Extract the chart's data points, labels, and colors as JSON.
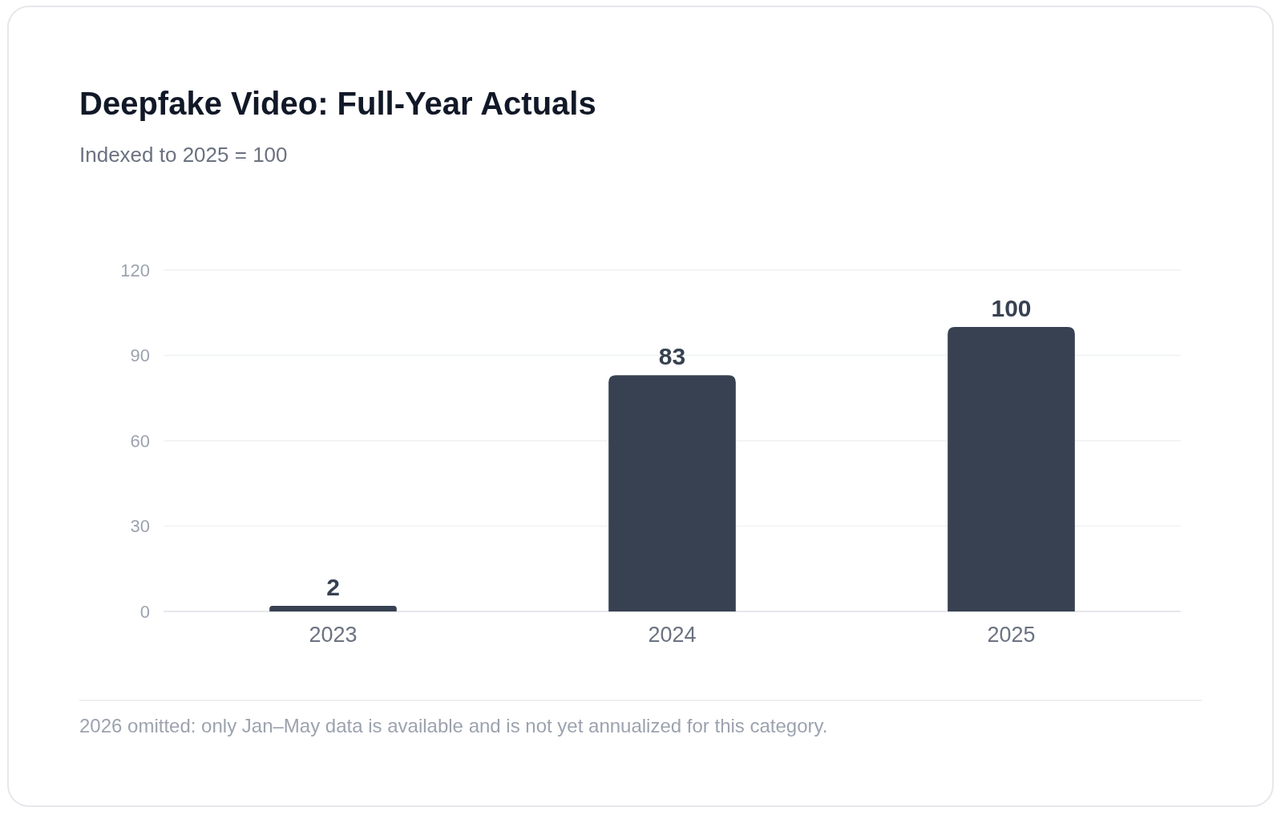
{
  "chart_data": {
    "type": "bar",
    "title": "Deepfake Video: Full-Year Actuals",
    "subtitle": "Indexed to 2025 = 100",
    "categories": [
      "2023",
      "2024",
      "2025"
    ],
    "values": [
      2,
      83,
      100
    ],
    "color": "#374151",
    "ylim": [
      0,
      120
    ],
    "yticks": [
      0,
      30,
      60,
      90,
      120
    ],
    "grid": "y",
    "data_labels": true,
    "annotations": [
      "2026 omitted: only Jan–May data is available and is not yet annualized for this category."
    ]
  }
}
